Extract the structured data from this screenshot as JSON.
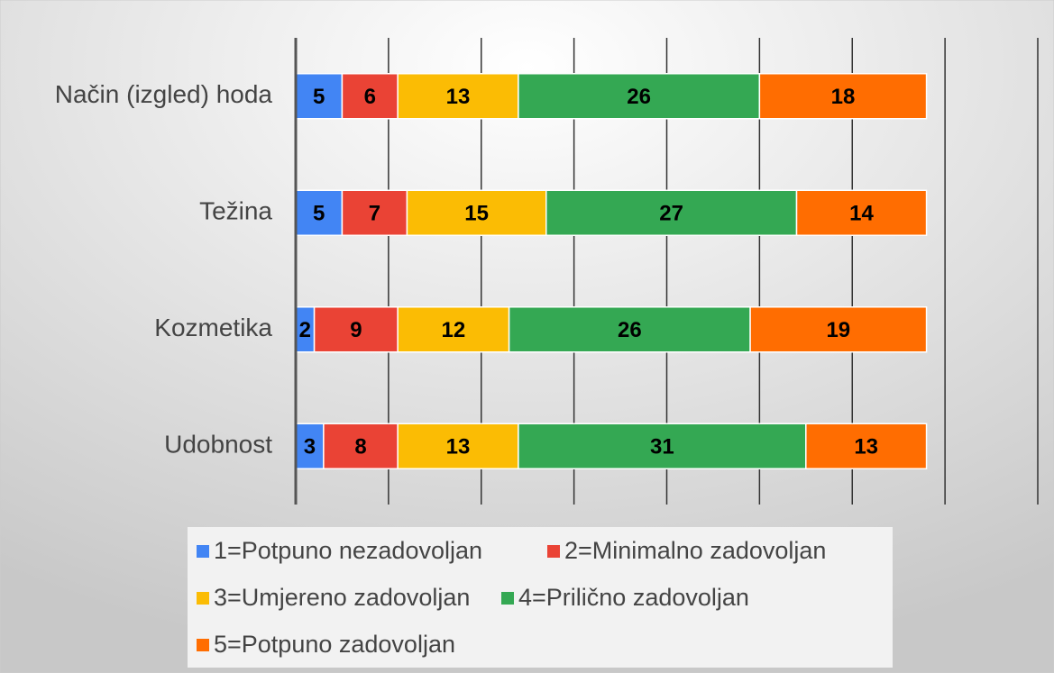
{
  "chart_data": {
    "type": "stacked_bar_horizontal",
    "categories": [
      "Način (izgled) hoda",
      "Težina",
      "Kozmetika",
      "Udobnost"
    ],
    "series": [
      {
        "name": "1=Potpuno nezadovoljan",
        "color": "#4285f4",
        "values": [
          5,
          5,
          2,
          3
        ]
      },
      {
        "name": "2=Minimalno zadovoljan",
        "color": "#ea4335",
        "values": [
          6,
          7,
          9,
          8
        ]
      },
      {
        "name": "3=Umjereno zadovoljan",
        "color": "#fbbc04",
        "values": [
          13,
          15,
          12,
          13
        ]
      },
      {
        "name": "4=Prilično zadovoljan",
        "color": "#34a853",
        "values": [
          26,
          27,
          26,
          31
        ]
      },
      {
        "name": "5=Potpuno zadovoljan",
        "color": "#ff6d01",
        "values": [
          18,
          14,
          19,
          13
        ]
      }
    ],
    "xlim": [
      0,
      80
    ],
    "xticks": [
      0,
      10,
      20,
      30,
      40,
      50,
      60,
      70,
      80
    ],
    "grid": true
  }
}
